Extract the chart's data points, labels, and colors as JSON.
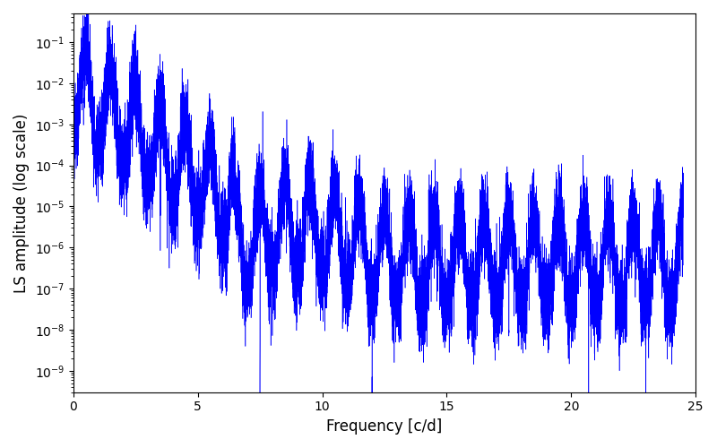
{
  "title": "",
  "xlabel": "Frequency [c/d]",
  "ylabel": "LS amplitude (log scale)",
  "xlim": [
    0,
    25
  ],
  "ylim": [
    3e-10,
    0.5
  ],
  "line_color": "#0000ff",
  "line_width": 0.4,
  "figsize": [
    8.0,
    5.0
  ],
  "dpi": 100,
  "freq_max": 24.5,
  "n_points": 15000,
  "seed": 7
}
